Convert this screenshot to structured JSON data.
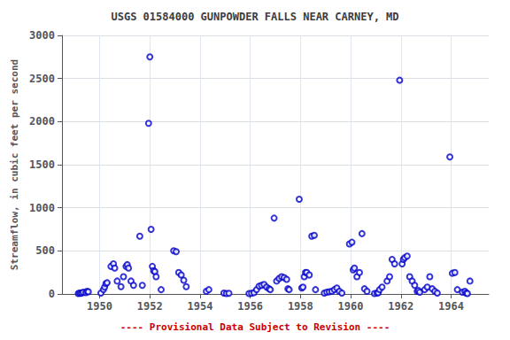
{
  "chart_data": {
    "type": "scatter",
    "title": "USGS 01584000 GUNPOWDER FALLS NEAR CARNEY, MD",
    "ylabel": "Streamflow, in cubic feet per second",
    "xlim": [
      1948.5,
      1965.5
    ],
    "ylim": [
      0,
      3000
    ],
    "xticks": [
      1950,
      1952,
      1954,
      1956,
      1958,
      1960,
      1962,
      1964
    ],
    "yticks": [
      0,
      500,
      1000,
      1500,
      2000,
      2500,
      3000
    ],
    "grid": true,
    "color": "#0000cc",
    "marker": "circle",
    "annotations": [
      {
        "text": "---- Provisional Data Subject to Revision ----",
        "color": "#cc0000"
      }
    ],
    "x": [
      1949.15,
      1949.2,
      1949.25,
      1949.3,
      1949.35,
      1949.45,
      1949.5,
      1949.55,
      1950.05,
      1950.15,
      1950.2,
      1950.25,
      1950.3,
      1950.45,
      1950.55,
      1950.6,
      1950.7,
      1950.85,
      1950.95,
      1951.05,
      1951.1,
      1951.15,
      1951.25,
      1951.35,
      1951.6,
      1951.7,
      1951.95,
      1952.0,
      1952.05,
      1952.1,
      1952.15,
      1952.2,
      1952.25,
      1952.45,
      1952.95,
      1953.05,
      1953.15,
      1953.25,
      1953.35,
      1953.45,
      1954.25,
      1954.35,
      1954.95,
      1955.05,
      1955.15,
      1955.95,
      1956.05,
      1956.15,
      1956.25,
      1956.35,
      1956.45,
      1956.55,
      1956.65,
      1956.75,
      1956.8,
      1956.95,
      1957.05,
      1957.15,
      1957.25,
      1957.35,
      1957.45,
      1957.5,
      1957.55,
      1957.95,
      1958.05,
      1958.1,
      1958.15,
      1958.2,
      1958.25,
      1958.35,
      1958.45,
      1958.55,
      1958.6,
      1958.95,
      1959.05,
      1959.15,
      1959.25,
      1959.35,
      1959.45,
      1959.55,
      1959.65,
      1959.95,
      1960.05,
      1960.1,
      1960.15,
      1960.25,
      1960.35,
      1960.45,
      1960.55,
      1960.65,
      1960.95,
      1961.05,
      1961.1,
      1961.15,
      1961.25,
      1961.45,
      1961.55,
      1961.65,
      1961.75,
      1961.95,
      1962.05,
      1962.1,
      1962.15,
      1962.25,
      1962.35,
      1962.45,
      1962.55,
      1962.65,
      1962.7,
      1962.75,
      1962.95,
      1963.05,
      1963.15,
      1963.25,
      1963.35,
      1963.45,
      1963.95,
      1964.05,
      1964.15,
      1964.25,
      1964.45,
      1964.55,
      1964.6,
      1964.65,
      1964.75
    ],
    "values": [
      5,
      10,
      8,
      12,
      20,
      15,
      30,
      25,
      10,
      50,
      80,
      120,
      130,
      320,
      350,
      300,
      150,
      85,
      200,
      320,
      340,
      300,
      150,
      100,
      670,
      100,
      1980,
      2750,
      750,
      320,
      270,
      260,
      200,
      50,
      500,
      490,
      250,
      220,
      160,
      85,
      30,
      50,
      10,
      5,
      8,
      5,
      8,
      15,
      50,
      90,
      100,
      110,
      80,
      60,
      50,
      880,
      150,
      180,
      200,
      190,
      170,
      60,
      50,
      1100,
      70,
      80,
      200,
      250,
      250,
      220,
      670,
      680,
      50,
      10,
      20,
      25,
      30,
      50,
      70,
      30,
      10,
      580,
      600,
      280,
      300,
      200,
      250,
      700,
      60,
      30,
      5,
      10,
      15,
      50,
      80,
      150,
      200,
      400,
      350,
      2480,
      350,
      400,
      420,
      440,
      200,
      150,
      100,
      30,
      40,
      20,
      50,
      80,
      200,
      60,
      30,
      10,
      1590,
      240,
      250,
      50,
      20,
      30,
      10,
      5,
      150
    ]
  }
}
